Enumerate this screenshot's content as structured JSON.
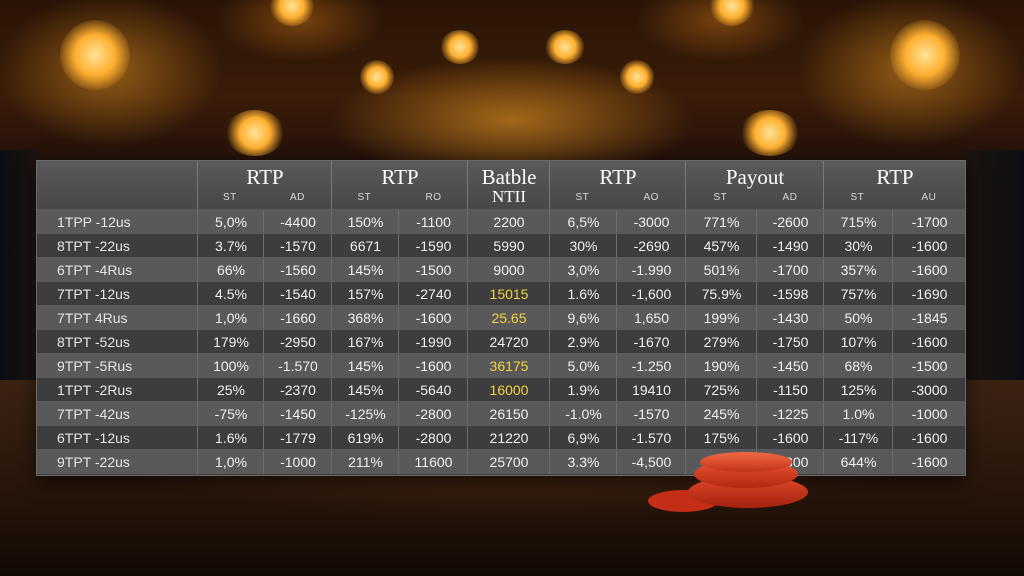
{
  "header": {
    "groups": [
      {
        "title": "RTP",
        "sub": [
          "ST",
          "AD"
        ]
      },
      {
        "title": "RTP",
        "sub": [
          "ST",
          "RO"
        ]
      },
      {
        "title": "Batble",
        "sub2": "NTII"
      },
      {
        "title": "RTP",
        "sub": [
          "ST",
          "AO"
        ]
      },
      {
        "title": "Payout",
        "sub": [
          "ST",
          "AD"
        ]
      },
      {
        "title": "RTP",
        "sub": [
          "ST",
          "AU"
        ]
      }
    ]
  },
  "rows": [
    {
      "name": "1TPP -12us",
      "c": [
        "5,0%",
        "-4400",
        "150%",
        "-1100",
        "2200",
        "6,5%",
        "-3000",
        "771%",
        "-2600",
        "715%",
        "-1700"
      ]
    },
    {
      "name": "8TPT -22us",
      "c": [
        "3.7%",
        "-1570",
        "6671",
        "-1590",
        "5990",
        "30%",
        "-2690",
        "457%",
        "-1490",
        "30%",
        "-1600"
      ]
    },
    {
      "name": "6TPT -4Rus",
      "c": [
        "66%",
        "-1560",
        "145%",
        "-1500",
        "9000",
        "3,0%",
        "-1.990",
        "501%",
        "-1700",
        "357%",
        "-1600"
      ]
    },
    {
      "name": "7TPT -12us",
      "c": [
        "4.5%",
        "-1540",
        "157%",
        "-2740",
        "15015",
        "1.6%",
        "-1,600",
        "75.9%",
        "-1598",
        "757%",
        "-1690"
      ]
    },
    {
      "name": "7TPT  4Rus",
      "c": [
        "1,0%",
        "-1660",
        "368%",
        "-1600",
        "25.65",
        "9,6%",
        "1,650",
        "199%",
        "-1430",
        "50%",
        "-1845"
      ]
    },
    {
      "name": "8TPT -52us",
      "c": [
        "179%",
        "-2950",
        "167%",
        "-1990",
        "24720",
        "2.9%",
        "-1670",
        "279%",
        "-1750",
        "107%",
        "-1600"
      ]
    },
    {
      "name": "9TPT -5Rus",
      "c": [
        "100%",
        "-1.570",
        "145%",
        "-1600",
        "36175",
        "5.0%",
        "-1.250",
        "190%",
        "-1450",
        "68%",
        "-1500"
      ]
    },
    {
      "name": "1TPT -2Rus",
      "c": [
        "25%",
        "-2370",
        "145%",
        "-5640",
        "16000",
        "1.9%",
        "19410",
        "725%",
        "-1150",
        "125%",
        "-3000"
      ]
    },
    {
      "name": "7TPT -42us",
      "c": [
        "-75%",
        "-1450",
        "-125%",
        "-2800",
        "26150",
        "-1.0%",
        "-1570",
        "245%",
        "-1225",
        "1.0%",
        "-1000"
      ]
    },
    {
      "name": "6TPT -12us",
      "c": [
        "1.6%",
        "-1779",
        "619%",
        "-2800",
        "21220",
        "6,9%",
        "-1.570",
        "175%",
        "-1600",
        "-117%",
        "-1600"
      ]
    },
    {
      "name": "9TPT -22us",
      "c": [
        "1,0%",
        "-1000",
        "211%",
        "11600",
        "25700",
        "3.3%",
        "-4,500",
        "455",
        "-1800",
        "644%",
        "-1600"
      ]
    }
  ],
  "highlight_rows": [
    3,
    4,
    6,
    7
  ],
  "colors": {
    "highlight": "#f4d23a",
    "board": "#3e3e40",
    "chip": "#d8361c"
  }
}
